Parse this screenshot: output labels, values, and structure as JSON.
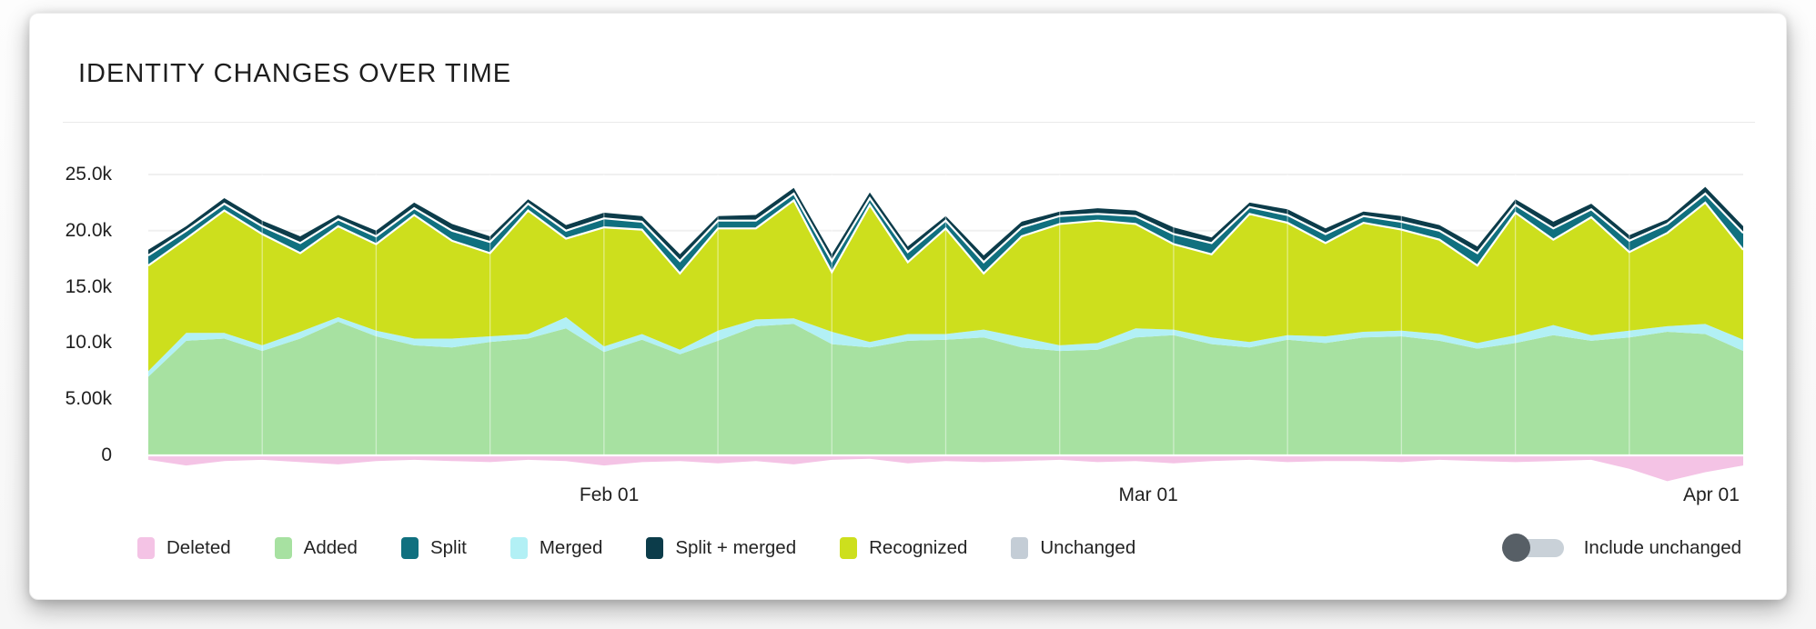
{
  "card": {
    "title": "IDENTITY CHANGES OVER TIME"
  },
  "controls": {
    "include_unchanged_label": "Include unchanged",
    "include_unchanged_on": false
  },
  "chart_data": {
    "type": "area",
    "stacked": true,
    "grid": true,
    "legend_position": "bottom",
    "ylim": [
      -3000,
      26000
    ],
    "y_ticks": [
      {
        "label": "0",
        "value": 0
      },
      {
        "label": "5.00k",
        "value": 5000
      },
      {
        "label": "10.0k",
        "value": 10000
      },
      {
        "label": "15.0k",
        "value": 15000
      },
      {
        "label": "20.0k",
        "value": 20000
      },
      {
        "label": "25.0k",
        "value": 25000
      }
    ],
    "x_ticks": [
      {
        "label": "Feb 01",
        "t": 0.289
      },
      {
        "label": "Mar 01",
        "t": 0.627
      },
      {
        "label": "Apr 01",
        "t": 0.98
      }
    ],
    "x": [
      "Jan 07",
      "Jan 09",
      "Jan 11",
      "Jan 13",
      "Jan 15",
      "Jan 17",
      "Jan 19",
      "Jan 21",
      "Jan 23",
      "Jan 25",
      "Jan 27",
      "Jan 29",
      "Jan 31",
      "Feb 02",
      "Feb 04",
      "Feb 06",
      "Feb 08",
      "Feb 10",
      "Feb 12",
      "Feb 14",
      "Feb 16",
      "Feb 18",
      "Feb 20",
      "Feb 22",
      "Feb 24",
      "Feb 26",
      "Feb 28",
      "Mar 02",
      "Mar 04",
      "Mar 06",
      "Mar 08",
      "Mar 10",
      "Mar 12",
      "Mar 14",
      "Mar 16",
      "Mar 18",
      "Mar 20",
      "Mar 22",
      "Mar 24",
      "Mar 26",
      "Mar 28",
      "Mar 30",
      "Apr 01"
    ],
    "series": [
      {
        "key": "deleted",
        "name": "Deleted",
        "color": "#f4c3e5",
        "direction": "negative",
        "values": [
          -400,
          -900,
          -500,
          -400,
          -600,
          -800,
          -500,
          -400,
          -500,
          -600,
          -400,
          -500,
          -900,
          -600,
          -500,
          -700,
          -500,
          -800,
          -400,
          -300,
          -700,
          -500,
          -600,
          -500,
          -400,
          -600,
          -500,
          -700,
          -500,
          -400,
          -600,
          -500,
          -500,
          -600,
          -400,
          -500,
          -600,
          -500,
          -400,
          -1200,
          -2300,
          -1500,
          -900
        ]
      },
      {
        "key": "added",
        "name": "Added",
        "color": "#a7e1a1",
        "values": [
          7000,
          10200,
          10400,
          9300,
          10400,
          11900,
          10600,
          9800,
          9600,
          10100,
          10400,
          11300,
          9200,
          10300,
          9000,
          10200,
          11500,
          11700,
          9900,
          9600,
          10200,
          10300,
          10500,
          9600,
          9300,
          9400,
          10500,
          10700,
          9900,
          9600,
          10300,
          10000,
          10500,
          10600,
          10200,
          9500,
          10000,
          10700,
          10200,
          10500,
          11000,
          10800,
          9300
        ]
      },
      {
        "key": "merged",
        "name": "Merged",
        "color": "#b2f0f5",
        "values": [
          500,
          700,
          500,
          500,
          600,
          400,
          500,
          600,
          800,
          500,
          400,
          1000,
          500,
          500,
          400,
          900,
          600,
          500,
          1100,
          500,
          600,
          500,
          700,
          900,
          500,
          600,
          800,
          500,
          600,
          500,
          400,
          600,
          500,
          500,
          600,
          500,
          700,
          900,
          500,
          600,
          500,
          900,
          1000
        ]
      },
      {
        "key": "recognized",
        "name": "Recognized",
        "color": "#cddf1d",
        "values": [
          9400,
          8400,
          10900,
          9900,
          7000,
          8100,
          7700,
          11000,
          8700,
          7400,
          11000,
          7000,
          10600,
          9300,
          6800,
          9100,
          8100,
          10500,
          5300,
          12200,
          6400,
          9400,
          5000,
          9000,
          10800,
          10900,
          9300,
          7600,
          7400,
          11400,
          10000,
          8300,
          9700,
          9000,
          8400,
          6900,
          10900,
          7600,
          10500,
          7000,
          8300,
          10800,
          8000
        ]
      },
      {
        "key": "split",
        "name": "Split",
        "color": "#10707f",
        "values": [
          900,
          700,
          600,
          700,
          900,
          600,
          700,
          600,
          900,
          1000,
          600,
          700,
          800,
          700,
          1100,
          700,
          700,
          600,
          1000,
          600,
          900,
          700,
          1000,
          800,
          700,
          600,
          700,
          900,
          1000,
          600,
          700,
          800,
          600,
          700,
          800,
          1100,
          700,
          1000,
          700,
          1000,
          800,
          800,
          1500
        ]
      },
      {
        "key": "split_merged",
        "name": "Split + merged",
        "color": "#0c3c4a",
        "values": [
          500,
          400,
          500,
          500,
          600,
          400,
          500,
          500,
          600,
          500,
          400,
          500,
          500,
          500,
          600,
          400,
          500,
          500,
          600,
          500,
          500,
          400,
          600,
          500,
          400,
          500,
          500,
          600,
          500,
          400,
          500,
          500,
          400,
          500,
          500,
          600,
          500,
          600,
          500,
          500,
          400,
          600,
          600
        ]
      },
      {
        "key": "unchanged",
        "name": "Unchanged",
        "color": "#c4cdd6",
        "visible": false
      }
    ],
    "legend": [
      {
        "key": "deleted",
        "label": "Deleted",
        "color": "#f4c3e5"
      },
      {
        "key": "added",
        "label": "Added",
        "color": "#a7e1a1"
      },
      {
        "key": "split",
        "label": "Split",
        "color": "#10707f"
      },
      {
        "key": "merged",
        "label": "Merged",
        "color": "#b2f0f5"
      },
      {
        "key": "split_merged",
        "label": "Split + merged",
        "color": "#0c3c4a"
      },
      {
        "key": "recognized",
        "label": "Recognized",
        "color": "#cddf1d"
      },
      {
        "key": "unchanged",
        "label": "Unchanged",
        "color": "#c4cdd6"
      }
    ],
    "style": {
      "grid_color": "#f0f0f0",
      "boundary_line_color": "#ffffff",
      "toggle_track_color": "#c9d1d8",
      "toggle_knob_color": "#575f66"
    }
  }
}
